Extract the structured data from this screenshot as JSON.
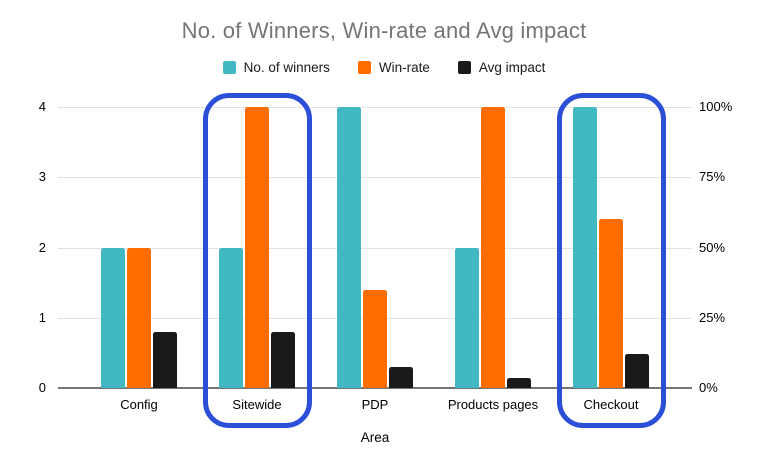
{
  "chart_data": {
    "type": "bar",
    "title": "No. of Winners, Win-rate and Avg impact",
    "xlabel": "Area",
    "categories": [
      "Config",
      "Sitewide",
      "PDP",
      "Products pages",
      "Checkout"
    ],
    "series": [
      {
        "name": "No. of winners",
        "axis": "left",
        "color": "#41b8c2",
        "values": [
          2,
          2,
          4,
          2,
          4
        ]
      },
      {
        "name": "Win-rate",
        "axis": "right",
        "color": "#ff6d01",
        "unit": "%",
        "values": [
          50,
          100,
          35,
          100,
          60
        ]
      },
      {
        "name": "Avg impact",
        "axis": "right",
        "color": "#1a1a1a",
        "unit": "%",
        "values": [
          20,
          20,
          7.5,
          3.5,
          12
        ]
      }
    ],
    "left_axis": {
      "range": [
        0,
        4
      ],
      "ticks": [
        0,
        1,
        2,
        3,
        4
      ]
    },
    "right_axis": {
      "range": [
        0,
        100
      ],
      "ticks": [
        "0%",
        "25%",
        "50%",
        "75%",
        "100%"
      ]
    },
    "legend_position": "top",
    "grid": true,
    "highlighted_categories": [
      "Sitewide",
      "Checkout"
    ],
    "highlight_color": "#2c4fd8"
  }
}
